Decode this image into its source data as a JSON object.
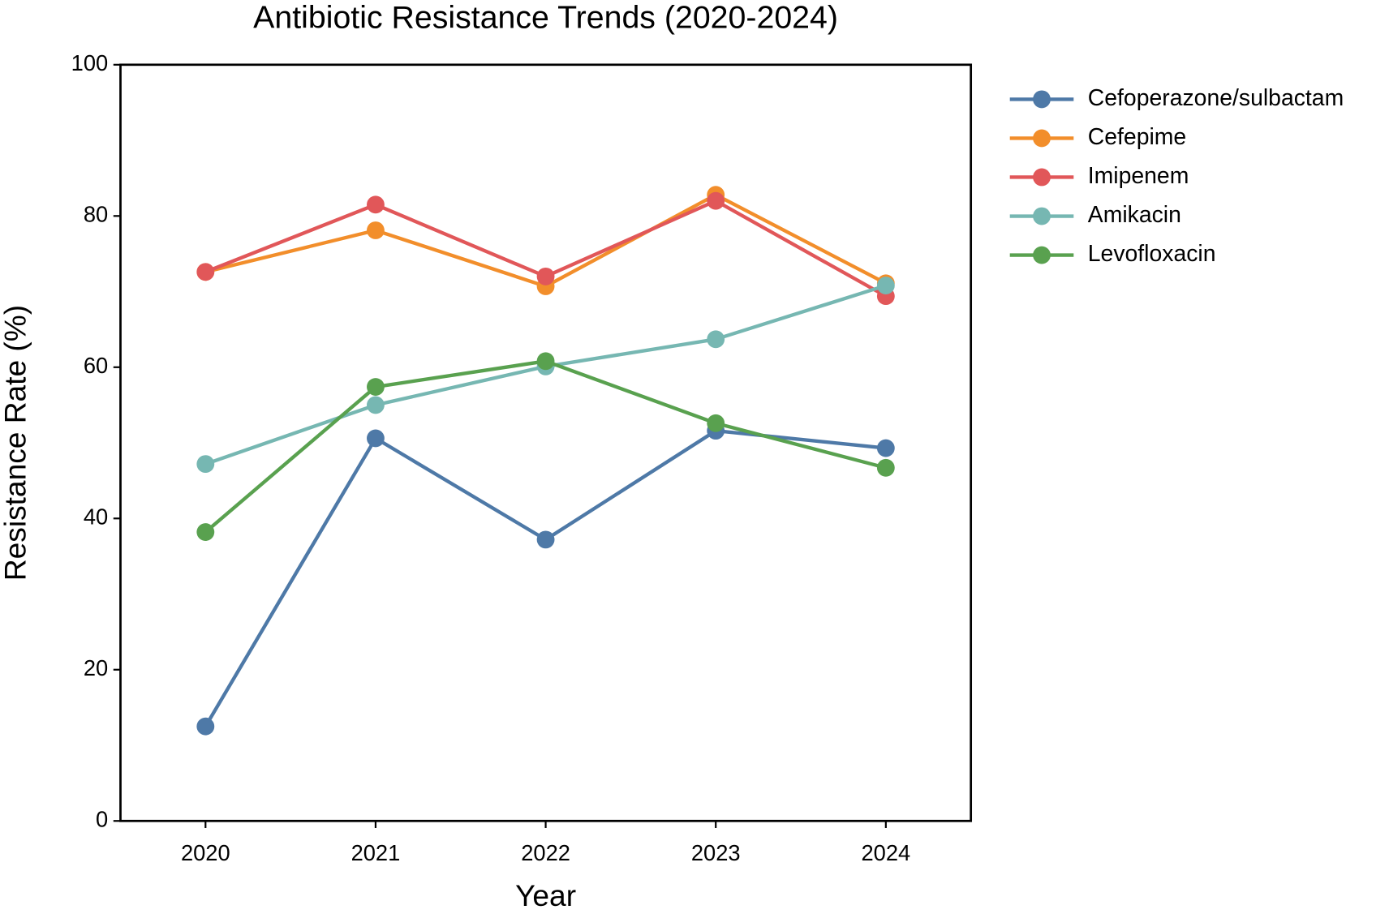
{
  "chart_data": {
    "type": "line",
    "title": "Antibiotic Resistance Trends (2020-2024)",
    "x_label": "Year",
    "y_label": "Resistance Rate (%)",
    "x": [
      2020,
      2021,
      2022,
      2023,
      2024
    ],
    "xlim": [
      2019.5,
      2024.5
    ],
    "xticks": [
      2020,
      2021,
      2022,
      2023,
      2024
    ],
    "ylim": [
      0,
      100
    ],
    "yticks": [
      0,
      20,
      40,
      60,
      80,
      100
    ],
    "grid": false,
    "legend": "right",
    "series": [
      {
        "name": "Cefoperazone/sulbactam",
        "color": "#4e79a7",
        "values": [
          12.5,
          50.6,
          37.2,
          51.6,
          49.3
        ]
      },
      {
        "name": "Cefepime",
        "color": "#f28e2b",
        "values": [
          72.6,
          78.1,
          70.7,
          82.8,
          71.1
        ]
      },
      {
        "name": "Imipenem",
        "color": "#e15759",
        "values": [
          72.6,
          81.5,
          72.0,
          82.0,
          69.4
        ]
      },
      {
        "name": "Amikacin",
        "color": "#76b7b2",
        "values": [
          47.2,
          55.0,
          60.1,
          63.7,
          70.8
        ]
      },
      {
        "name": "Levofloxacin",
        "color": "#59a14f",
        "values": [
          38.2,
          57.4,
          60.8,
          52.6,
          46.7
        ]
      }
    ]
  }
}
